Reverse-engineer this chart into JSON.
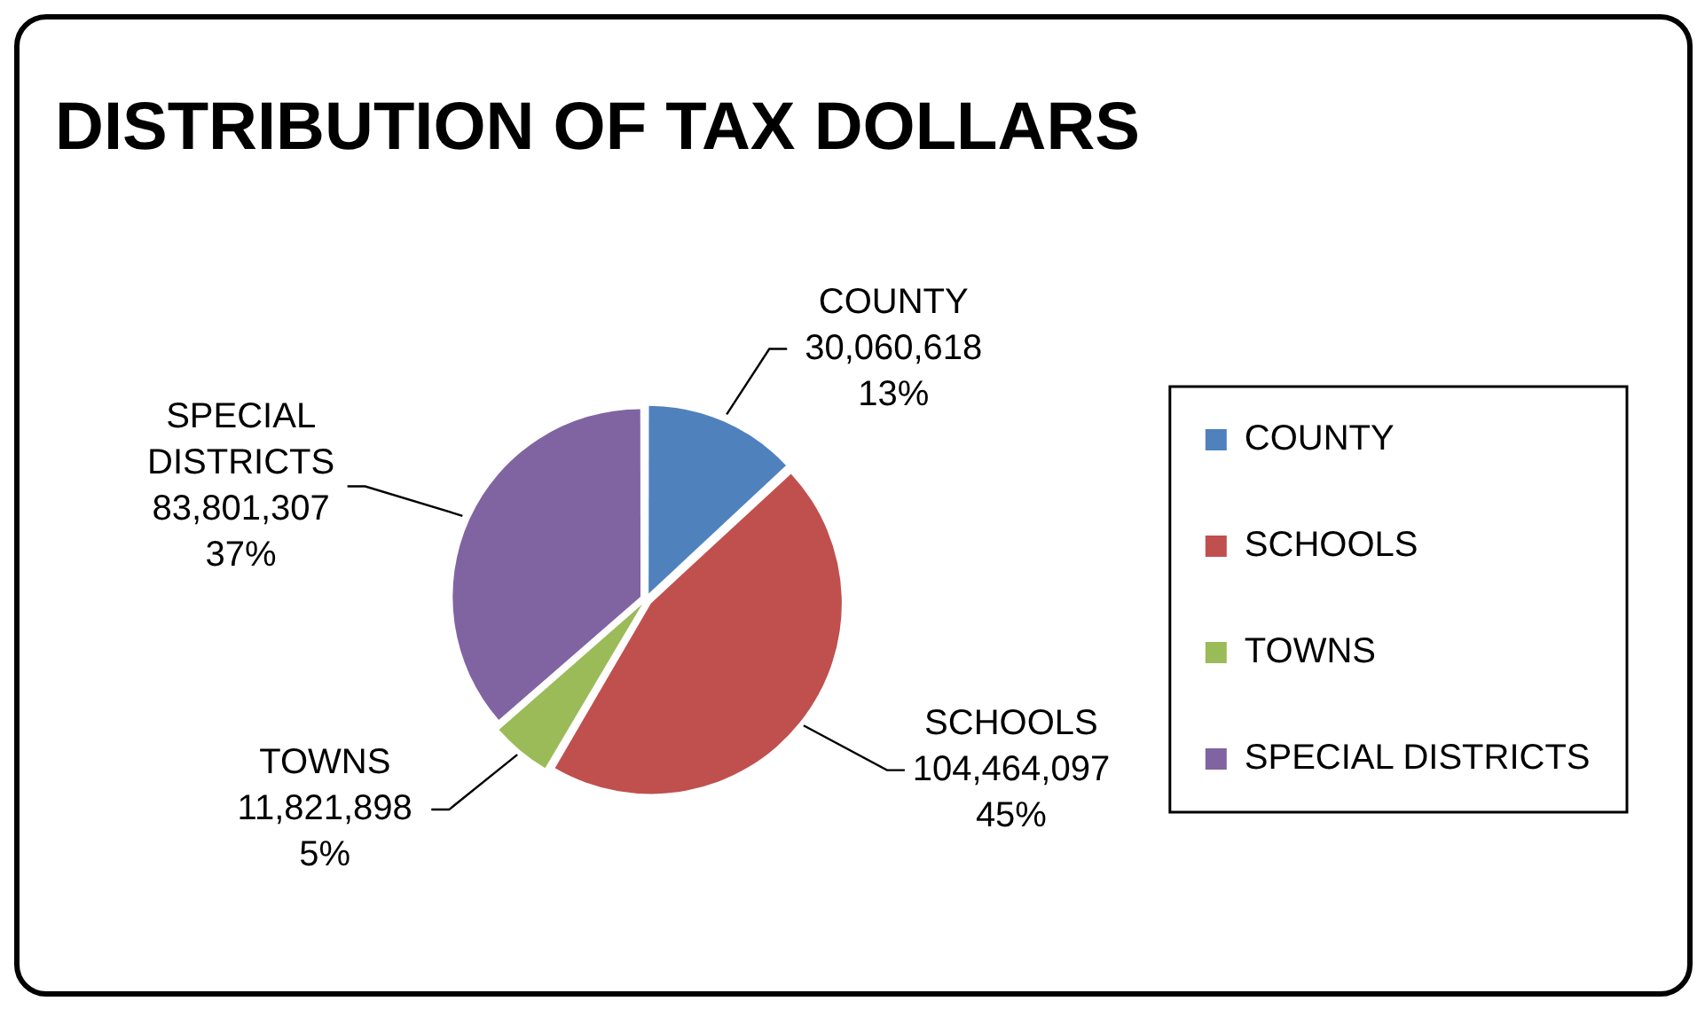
{
  "chart_data": {
    "type": "pie",
    "title": "DISTRIBUTION OF TAX DOLLARS",
    "categories": [
      "COUNTY",
      "SCHOOLS",
      "TOWNS",
      "SPECIAL DISTRICTS"
    ],
    "values": [
      30060618,
      104464097,
      11821898,
      83801307
    ],
    "colors": [
      "#4f81bd",
      "#c0504d",
      "#9bbb59",
      "#8064a2"
    ],
    "value_labels": [
      "30,060,618\n13%",
      "104,464,097\n45%",
      "11,821,898\n5%",
      "83,801,307\n37%"
    ],
    "legend": "right"
  }
}
